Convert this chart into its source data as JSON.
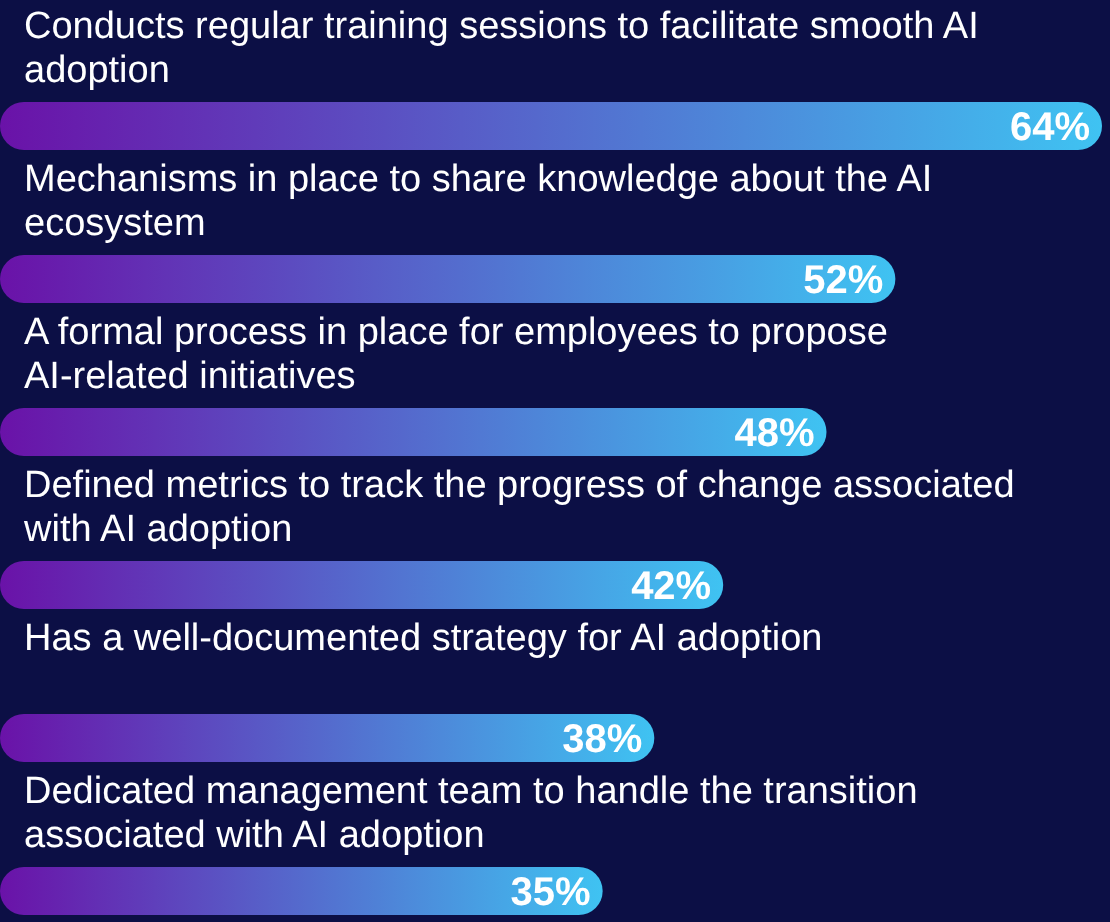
{
  "chart_data": {
    "type": "bar",
    "orientation": "horizontal",
    "categories": [
      "Conducts regular training sessions to facilitate smooth AI adoption",
      "Mechanisms in place to share knowledge about the AI ecosystem",
      "A formal process in place for employees to propose AI-related initiatives",
      "Defined metrics to track the progress of change associated with AI adoption",
      "Has a well-documented strategy for AI adoption",
      "Dedicated management team to handle the transition associated with AI adoption"
    ],
    "values": [
      64,
      52,
      48,
      42,
      38,
      35
    ],
    "value_labels": [
      "64%",
      "52%",
      "48%",
      "42%",
      "38%",
      "35%"
    ],
    "color": "#3fc3f2"
  }
}
